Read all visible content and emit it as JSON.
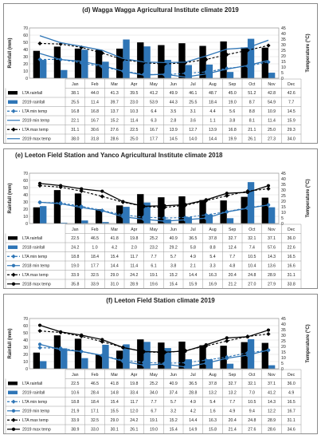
{
  "chart_data": [
    {
      "type": "bar",
      "title": "(d) Wagga Wagga Agricultural Institute climate 2019",
      "ylabel": "Rainfall (mm)",
      "y2label": "Temperature (°C)",
      "ylim": [
        0,
        70
      ],
      "y2lim": [
        0,
        45
      ],
      "yticks": [
        0,
        10,
        20,
        30,
        40,
        50,
        60,
        70
      ],
      "y2ticks": [
        0,
        5,
        10,
        15,
        20,
        25,
        30,
        35,
        40,
        45
      ],
      "categories": [
        "Jan",
        "Feb",
        "Mar",
        "Apr",
        "May",
        "Jun",
        "Jul",
        "Aug",
        "Sep",
        "Oct",
        "Nov",
        "Dec"
      ],
      "series": [
        {
          "name": "LTA rainfall",
          "kind": "bar",
          "axis": "left",
          "color": "#000000",
          "labels": [
            "38.1",
            "44.0",
            "41.3",
            "39.5",
            "41.2",
            "49.9",
            "46.1",
            "48.7",
            "45.0",
            "51.2",
            "42.8",
            "42.6"
          ]
        },
        {
          "name": "2019 rainfall",
          "kind": "bar",
          "axis": "left",
          "color": "#2e75b6",
          "labels": [
            "25.5",
            "11.4",
            "39.7",
            "23.0",
            "53.9",
            "44.3",
            "25.5",
            "18.4",
            "19.0",
            "8.7",
            "54.9",
            "7.7"
          ]
        },
        {
          "name": "LTA min temp",
          "kind": "line",
          "axis": "right",
          "color": "#2e75b6",
          "dash": true,
          "marker": "diamond",
          "labels": [
            "16.8",
            "16.8",
            "13.7",
            "10.3",
            "6.4",
            "3.5",
            "3.1",
            "4.4",
            "5.6",
            "8.8",
            "10.9",
            "14.5"
          ]
        },
        {
          "name": "2019 min temp",
          "kind": "line",
          "axis": "right",
          "color": "#2e75b6",
          "dash": false,
          "marker": "none",
          "labels": [
            "22.1",
            "16.7",
            "15.2",
            "11.4",
            "6.3",
            "2.8",
            "3.6",
            "1.1",
            "3.8",
            "8.1",
            "11.4",
            "15.9"
          ]
        },
        {
          "name": "LTA max temp",
          "kind": "line",
          "axis": "right",
          "color": "#000000",
          "dash": true,
          "marker": "diamond",
          "labels": [
            "31.1",
            "30.6",
            "27.6",
            "22.5",
            "16.7",
            "13.9",
            "12.7",
            "13.9",
            "16.8",
            "21.1",
            "25.0",
            "29.3"
          ]
        },
        {
          "name": "2019 max temp",
          "kind": "line",
          "axis": "right",
          "color": "#2e75b6",
          "dash": false,
          "marker": "none",
          "labels": [
            "38.0",
            "31.8",
            "28.6",
            "25.0",
            "17.7",
            "14.5",
            "14.0",
            "14.4",
            "19.9",
            "26.1",
            "27.3",
            "34.0"
          ]
        }
      ]
    },
    {
      "type": "bar",
      "title": "(e) Leeton Field Station and Yanco Agricultural Institute climate 2018",
      "ylabel": "Rainfall (mm)",
      "y2label": "Temperature (°C)",
      "ylim": [
        0,
        70
      ],
      "y2lim": [
        0,
        45
      ],
      "yticks": [
        0,
        10,
        20,
        30,
        40,
        50,
        60,
        70
      ],
      "y2ticks": [
        0,
        5,
        10,
        15,
        20,
        25,
        30,
        35,
        40,
        45
      ],
      "categories": [
        "Jan",
        "Feb",
        "Mar",
        "Apr",
        "May",
        "Jun",
        "Jul",
        "Aug",
        "Sep",
        "Oct",
        "Nov",
        "Dec"
      ],
      "series": [
        {
          "name": "LTA rainfall",
          "kind": "bar",
          "axis": "left",
          "color": "#000000",
          "labels": [
            "22.5",
            "46.5",
            "41.8",
            "19.8",
            "25.2",
            "40.9",
            "36.5",
            "37.8",
            "32.7",
            "32.1",
            "37.1",
            "36.0"
          ]
        },
        {
          "name": "2018 rainfall",
          "kind": "bar",
          "axis": "left",
          "color": "#2e75b6",
          "labels": [
            "24.2",
            "1.0",
            "4.2",
            "2.0",
            "23.2",
            "29.2",
            "5.8",
            "8.8",
            "12.4",
            "7.4",
            "57.6",
            "22.6"
          ]
        },
        {
          "name": "LTA min temp",
          "kind": "line",
          "axis": "right",
          "color": "#2e75b6",
          "dash": true,
          "marker": "diamond",
          "labels": [
            "18.8",
            "18.4",
            "15.4",
            "11.7",
            "7.7",
            "5.7",
            "4.9",
            "5.4",
            "7.7",
            "10.5",
            "14.3",
            "16.5"
          ]
        },
        {
          "name": "2018 min temp",
          "kind": "line",
          "axis": "right",
          "color": "#2e75b6",
          "dash": false,
          "marker": "circle",
          "labels": [
            "19.0",
            "17.7",
            "14.4",
            "11.4",
            "6.1",
            "3.8",
            "2.1",
            "3.3",
            "4.8",
            "10.4",
            "13.6",
            "16.6"
          ]
        },
        {
          "name": "LTA max temp",
          "kind": "line",
          "axis": "right",
          "color": "#000000",
          "dash": true,
          "marker": "diamond",
          "labels": [
            "33.9",
            "32.5",
            "29.0",
            "24.2",
            "19.1",
            "15.2",
            "14.4",
            "16.3",
            "20.4",
            "24.8",
            "28.9",
            "31.1"
          ]
        },
        {
          "name": "2018 max temp",
          "kind": "line",
          "axis": "right",
          "color": "#000000",
          "dash": false,
          "marker": "circle",
          "labels": [
            "35.8",
            "33.9",
            "31.0",
            "28.9",
            "19.6",
            "15.4",
            "15.9",
            "16.9",
            "21.2",
            "27.0",
            "27.9",
            "33.8"
          ]
        }
      ]
    },
    {
      "type": "bar",
      "title": "(f) Leeton Field Station climate 2019",
      "ylabel": "Rainfall (mm)",
      "y2label": "Temperature (°C)",
      "ylim": [
        0,
        70
      ],
      "y2lim": [
        0,
        45
      ],
      "yticks": [
        0,
        10,
        20,
        30,
        40,
        50,
        60,
        70
      ],
      "y2ticks": [
        0,
        5,
        10,
        15,
        20,
        25,
        30,
        35,
        40,
        45
      ],
      "categories": [
        "Jan",
        "Feb",
        "Mar",
        "Apr",
        "May",
        "Jun",
        "Jul",
        "Aug",
        "Sep",
        "Oct",
        "Nov",
        "Dec"
      ],
      "series": [
        {
          "name": "LTA rainfall",
          "kind": "bar",
          "axis": "left",
          "color": "#000000",
          "labels": [
            "22.5",
            "46.5",
            "41.8",
            "19.8",
            "25.2",
            "40.9",
            "36.5",
            "37.8",
            "32.7",
            "32.1",
            "37.1",
            "36.0"
          ]
        },
        {
          "name": "2019 rainfall",
          "kind": "bar",
          "axis": "left",
          "color": "#2e75b6",
          "labels": [
            "10.6",
            "28.4",
            "14.8",
            "33.4",
            "34.0",
            "37.4",
            "28.8",
            "13.2",
            "13.2",
            "7.0",
            "41.2",
            "4.9"
          ]
        },
        {
          "name": "LTA min temp",
          "kind": "line",
          "axis": "right",
          "color": "#2e75b6",
          "dash": true,
          "marker": "diamond",
          "labels": [
            "18.8",
            "18.4",
            "15.4",
            "11.7",
            "7.7",
            "5.7",
            "4.9",
            "5.4",
            "7.7",
            "10.5",
            "14.3",
            "16.5"
          ]
        },
        {
          "name": "2019 min temp",
          "kind": "line",
          "axis": "right",
          "color": "#2e75b6",
          "dash": false,
          "marker": "circle",
          "labels": [
            "21.9",
            "17.1",
            "15.5",
            "12.0",
            "6.7",
            "3.2",
            "4.2",
            "1.6",
            "4.9",
            "9.4",
            "12.2",
            "16.7"
          ]
        },
        {
          "name": "LTA max temp",
          "kind": "line",
          "axis": "right",
          "color": "#000000",
          "dash": true,
          "marker": "diamond",
          "labels": [
            "33.9",
            "32.5",
            "29.0",
            "24.2",
            "19.1",
            "15.2",
            "14.4",
            "16.3",
            "20.4",
            "24.8",
            "28.9",
            "31.1"
          ]
        },
        {
          "name": "2019 max temp",
          "kind": "line",
          "axis": "right",
          "color": "#000000",
          "dash": false,
          "marker": "circle",
          "labels": [
            "38.9",
            "33.0",
            "30.1",
            "26.1",
            "19.0",
            "15.4",
            "14.9",
            "15.8",
            "21.4",
            "27.6",
            "28.6",
            "34.6"
          ]
        }
      ]
    }
  ]
}
